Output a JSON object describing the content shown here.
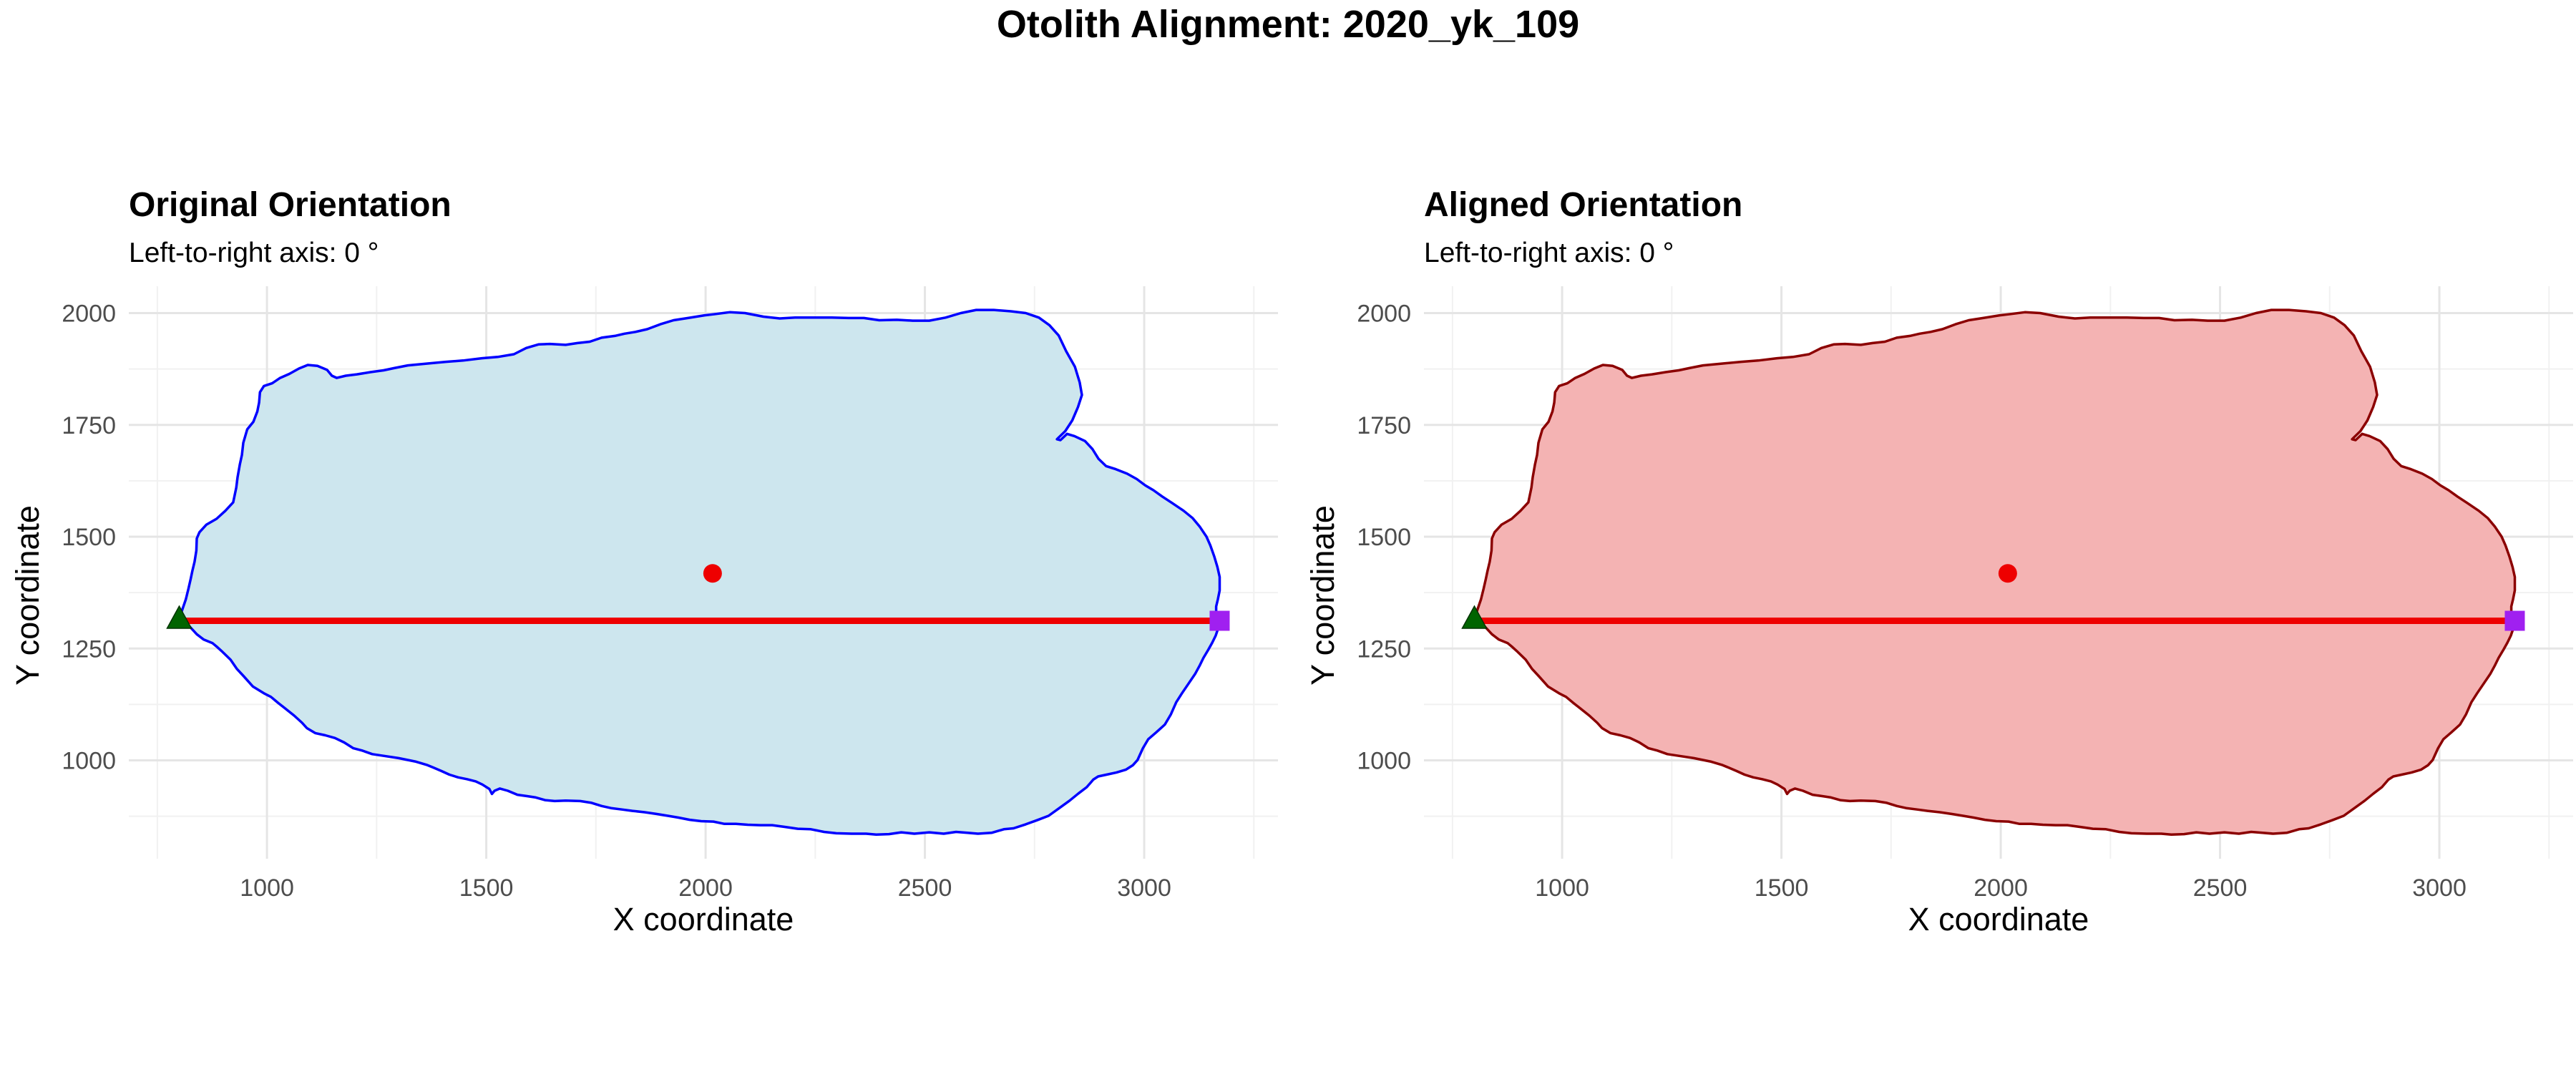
{
  "figure_title": "Otolith Alignment: 2020_yk_109",
  "chart_data": [
    {
      "type": "scatter",
      "title": "Original Orientation",
      "subtitle": "Left-to-right axis: 0 °",
      "xlabel": "X coordinate",
      "ylabel": "Y coordinate",
      "xlim": [
        685,
        3305
      ],
      "ylim": [
        780,
        2060
      ],
      "xticks": [
        1000,
        1500,
        2000,
        2500,
        3000
      ],
      "yticks": [
        1000,
        1250,
        1500,
        1750,
        2000
      ],
      "grid": true,
      "outline_fill": "#cde6ee",
      "outline_stroke": "#0000ff",
      "outline": [
        [
          800,
          1316
        ],
        [
          823,
          1300
        ],
        [
          840,
          1282
        ],
        [
          856,
          1270
        ],
        [
          876,
          1262
        ],
        [
          887,
          1253
        ],
        [
          896,
          1245
        ],
        [
          917,
          1225
        ],
        [
          931,
          1205
        ],
        [
          947,
          1188
        ],
        [
          968,
          1165
        ],
        [
          993,
          1150
        ],
        [
          1009,
          1142
        ],
        [
          1026,
          1128
        ],
        [
          1039,
          1118
        ],
        [
          1062,
          1100
        ],
        [
          1080,
          1084
        ],
        [
          1091,
          1072
        ],
        [
          1110,
          1061
        ],
        [
          1133,
          1056
        ],
        [
          1155,
          1050
        ],
        [
          1176,
          1040
        ],
        [
          1197,
          1027
        ],
        [
          1217,
          1022
        ],
        [
          1240,
          1014
        ],
        [
          1267,
          1010
        ],
        [
          1300,
          1005
        ],
        [
          1340,
          997
        ],
        [
          1364,
          990
        ],
        [
          1379,
          984
        ],
        [
          1398,
          976
        ],
        [
          1416,
          968
        ],
        [
          1436,
          962
        ],
        [
          1456,
          958
        ],
        [
          1476,
          953
        ],
        [
          1491,
          946
        ],
        [
          1507,
          936
        ],
        [
          1513,
          925
        ],
        [
          1519,
          932
        ],
        [
          1531,
          937
        ],
        [
          1549,
          932
        ],
        [
          1571,
          923
        ],
        [
          1593,
          920
        ],
        [
          1613,
          917
        ],
        [
          1634,
          911
        ],
        [
          1656,
          909
        ],
        [
          1681,
          910
        ],
        [
          1714,
          909
        ],
        [
          1740,
          905
        ],
        [
          1763,
          898
        ],
        [
          1786,
          893
        ],
        [
          1811,
          890
        ],
        [
          1833,
          887
        ],
        [
          1861,
          884
        ],
        [
          1889,
          880
        ],
        [
          1914,
          876
        ],
        [
          1938,
          872
        ],
        [
          1964,
          867
        ],
        [
          1990,
          864
        ],
        [
          2018,
          863
        ],
        [
          2043,
          858
        ],
        [
          2069,
          858
        ],
        [
          2096,
          856
        ],
        [
          2125,
          855
        ],
        [
          2152,
          855
        ],
        [
          2182,
          851
        ],
        [
          2210,
          847
        ],
        [
          2240,
          846
        ],
        [
          2270,
          840
        ],
        [
          2298,
          837
        ],
        [
          2333,
          836
        ],
        [
          2366,
          836
        ],
        [
          2389,
          834
        ],
        [
          2418,
          835
        ],
        [
          2446,
          839
        ],
        [
          2476,
          836
        ],
        [
          2510,
          839
        ],
        [
          2543,
          836
        ],
        [
          2571,
          840
        ],
        [
          2597,
          838
        ],
        [
          2621,
          836
        ],
        [
          2652,
          838
        ],
        [
          2680,
          846
        ],
        [
          2702,
          848
        ],
        [
          2730,
          857
        ],
        [
          2755,
          866
        ],
        [
          2782,
          876
        ],
        [
          2809,
          895
        ],
        [
          2830,
          910
        ],
        [
          2850,
          926
        ],
        [
          2869,
          940
        ],
        [
          2884,
          957
        ],
        [
          2895,
          964
        ],
        [
          2914,
          968
        ],
        [
          2937,
          973
        ],
        [
          2958,
          979
        ],
        [
          2974,
          989
        ],
        [
          2985,
          1001
        ],
        [
          2997,
          1027
        ],
        [
          3009,
          1047
        ],
        [
          3028,
          1063
        ],
        [
          3047,
          1080
        ],
        [
          3061,
          1103
        ],
        [
          3073,
          1130
        ],
        [
          3086,
          1150
        ],
        [
          3100,
          1170
        ],
        [
          3116,
          1193
        ],
        [
          3127,
          1213
        ],
        [
          3135,
          1229
        ],
        [
          3146,
          1247
        ],
        [
          3155,
          1263
        ],
        [
          3163,
          1279
        ],
        [
          3169,
          1296
        ],
        [
          3170,
          1313
        ],
        [
          3164,
          1326
        ],
        [
          3164,
          1344
        ],
        [
          3168,
          1360
        ],
        [
          3172,
          1380
        ],
        [
          3172,
          1410
        ],
        [
          3167,
          1432
        ],
        [
          3160,
          1455
        ],
        [
          3151,
          1480
        ],
        [
          3142,
          1500
        ],
        [
          3127,
          1522
        ],
        [
          3110,
          1542
        ],
        [
          3090,
          1558
        ],
        [
          3064,
          1575
        ],
        [
          3041,
          1590
        ],
        [
          3021,
          1604
        ],
        [
          3002,
          1615
        ],
        [
          2983,
          1629
        ],
        [
          2961,
          1641
        ],
        [
          2935,
          1651
        ],
        [
          2913,
          1658
        ],
        [
          2896,
          1674
        ],
        [
          2882,
          1696
        ],
        [
          2865,
          1714
        ],
        [
          2841,
          1725
        ],
        [
          2824,
          1730
        ],
        [
          2809,
          1716
        ],
        [
          2801,
          1718
        ],
        [
          2820,
          1736
        ],
        [
          2836,
          1760
        ],
        [
          2849,
          1790
        ],
        [
          2858,
          1817
        ],
        [
          2853,
          1845
        ],
        [
          2842,
          1880
        ],
        [
          2822,
          1915
        ],
        [
          2805,
          1950
        ],
        [
          2784,
          1973
        ],
        [
          2760,
          1990
        ],
        [
          2730,
          2000
        ],
        [
          2696,
          2004
        ],
        [
          2657,
          2007
        ],
        [
          2617,
          2007
        ],
        [
          2582,
          2000
        ],
        [
          2547,
          1990
        ],
        [
          2510,
          1983
        ],
        [
          2472,
          1983
        ],
        [
          2436,
          1985
        ],
        [
          2396,
          1984
        ],
        [
          2361,
          1989
        ],
        [
          2326,
          1989
        ],
        [
          2288,
          1990
        ],
        [
          2245,
          1990
        ],
        [
          2204,
          1990
        ],
        [
          2169,
          1988
        ],
        [
          2132,
          1992
        ],
        [
          2090,
          2000
        ],
        [
          2055,
          2002
        ],
        [
          2023,
          1998
        ],
        [
          1998,
          1995
        ],
        [
          1960,
          1989
        ],
        [
          1927,
          1984
        ],
        [
          1897,
          1975
        ],
        [
          1867,
          1964
        ],
        [
          1840,
          1958
        ],
        [
          1815,
          1954
        ],
        [
          1793,
          1949
        ],
        [
          1763,
          1945
        ],
        [
          1736,
          1936
        ],
        [
          1708,
          1933
        ],
        [
          1681,
          1929
        ],
        [
          1645,
          1931
        ],
        [
          1619,
          1930
        ],
        [
          1591,
          1922
        ],
        [
          1563,
          1908
        ],
        [
          1526,
          1902
        ],
        [
          1490,
          1899
        ],
        [
          1447,
          1894
        ],
        [
          1408,
          1891
        ],
        [
          1364,
          1887
        ],
        [
          1321,
          1883
        ],
        [
          1290,
          1877
        ],
        [
          1266,
          1872
        ],
        [
          1236,
          1868
        ],
        [
          1205,
          1863
        ],
        [
          1180,
          1860
        ],
        [
          1159,
          1855
        ],
        [
          1148,
          1860
        ],
        [
          1137,
          1873
        ],
        [
          1115,
          1882
        ],
        [
          1093,
          1884
        ],
        [
          1073,
          1876
        ],
        [
          1051,
          1864
        ],
        [
          1030,
          1855
        ],
        [
          1012,
          1843
        ],
        [
          993,
          1837
        ],
        [
          984,
          1823
        ],
        [
          982,
          1800
        ],
        [
          978,
          1780
        ],
        [
          969,
          1757
        ],
        [
          955,
          1740
        ],
        [
          946,
          1710
        ],
        [
          943,
          1683
        ],
        [
          938,
          1661
        ],
        [
          933,
          1633
        ],
        [
          930,
          1610
        ],
        [
          923,
          1577
        ],
        [
          905,
          1558
        ],
        [
          885,
          1540
        ],
        [
          862,
          1527
        ],
        [
          846,
          1510
        ],
        [
          840,
          1496
        ],
        [
          839,
          1469
        ],
        [
          835,
          1444
        ],
        [
          830,
          1424
        ],
        [
          826,
          1405
        ],
        [
          821,
          1384
        ],
        [
          815,
          1360
        ],
        [
          808,
          1340
        ]
      ],
      "centroid": [
        2016,
        1418
      ],
      "axis_line": [
        [
          800,
          1312
        ],
        [
          3172,
          1312
        ]
      ],
      "left_point": [
        800,
        1316
      ],
      "right_point": [
        3172,
        1312
      ],
      "centroid_color": "#ee0000",
      "axis_color": "#ee0000",
      "left_marker_color": "#006400",
      "right_marker_color": "#a020f0"
    },
    {
      "type": "scatter",
      "title": "Aligned Orientation",
      "subtitle": "Left-to-right axis: 0 °",
      "xlabel": "X coordinate",
      "ylabel": "Y coordinate",
      "xlim": [
        685,
        3305
      ],
      "ylim": [
        780,
        2060
      ],
      "xticks": [
        1000,
        1500,
        2000,
        2500,
        3000
      ],
      "yticks": [
        1000,
        1250,
        1500,
        1750,
        2000
      ],
      "grid": true,
      "outline_fill": "#f4b3b3",
      "outline_stroke": "#8b0000",
      "outline": "same",
      "centroid": [
        2016,
        1418
      ],
      "axis_line": [
        [
          800,
          1312
        ],
        [
          3172,
          1312
        ]
      ],
      "left_point": [
        800,
        1316
      ],
      "right_point": [
        3172,
        1312
      ],
      "centroid_color": "#ee0000",
      "axis_color": "#ee0000",
      "left_marker_color": "#006400",
      "right_marker_color": "#a020f0"
    }
  ]
}
